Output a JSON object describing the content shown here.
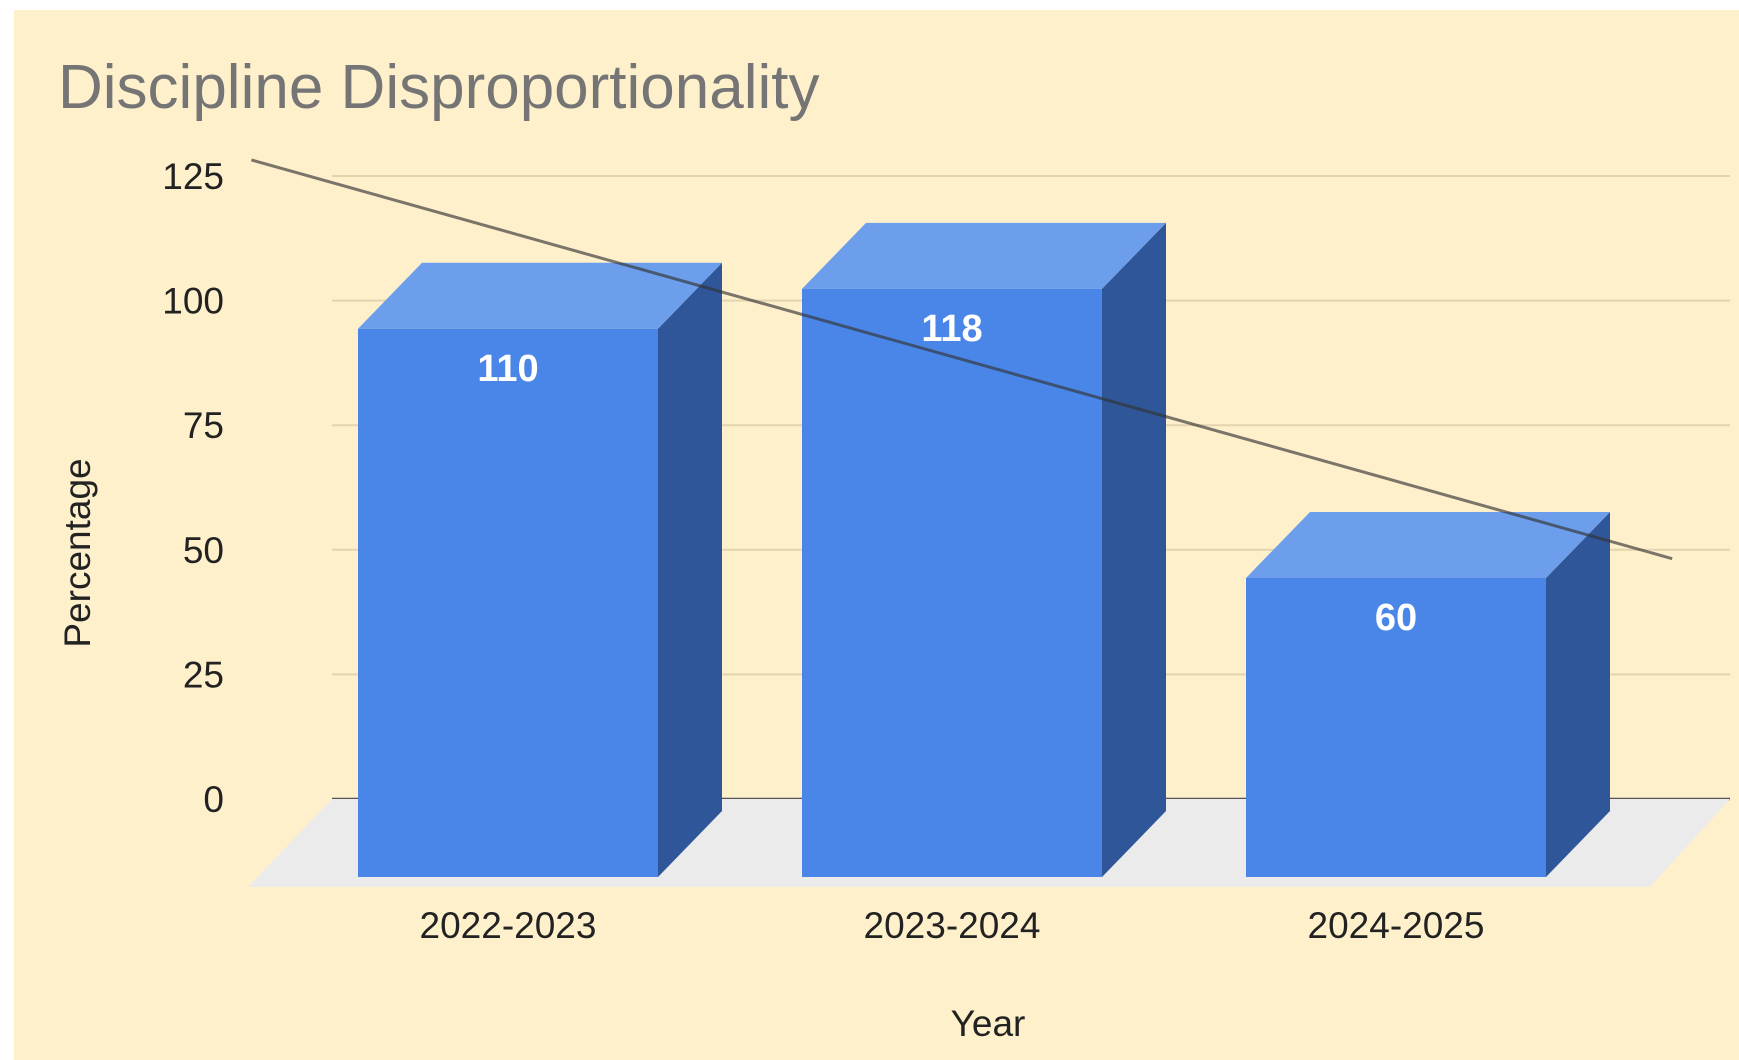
{
  "chart_data": {
    "type": "bar",
    "title": "Discipline Disproportionality",
    "xlabel": "Year",
    "ylabel": "Percentage",
    "categories": [
      "2022-2023",
      "2023-2024",
      "2024-2025"
    ],
    "values": [
      110,
      118,
      60
    ],
    "data_labels": [
      "110",
      "118",
      "60"
    ],
    "ylim": [
      0,
      125
    ],
    "yticks": [
      0,
      25,
      50,
      75,
      100,
      125
    ],
    "ytick_labels": [
      "0",
      "25",
      "50",
      "75",
      "100",
      "125"
    ],
    "grid": true,
    "style": "3d",
    "trendline": {
      "type": "linear"
    },
    "colors": {
      "background": "#FFF0CC",
      "bar_front": "#4A86E8",
      "bar_top": "#6D9EEB",
      "bar_side": "#2E5699",
      "floor": "#EBEBEB",
      "gridline": "#E3D3AF",
      "baseline": "#555555",
      "trendline": "#333333"
    }
  }
}
